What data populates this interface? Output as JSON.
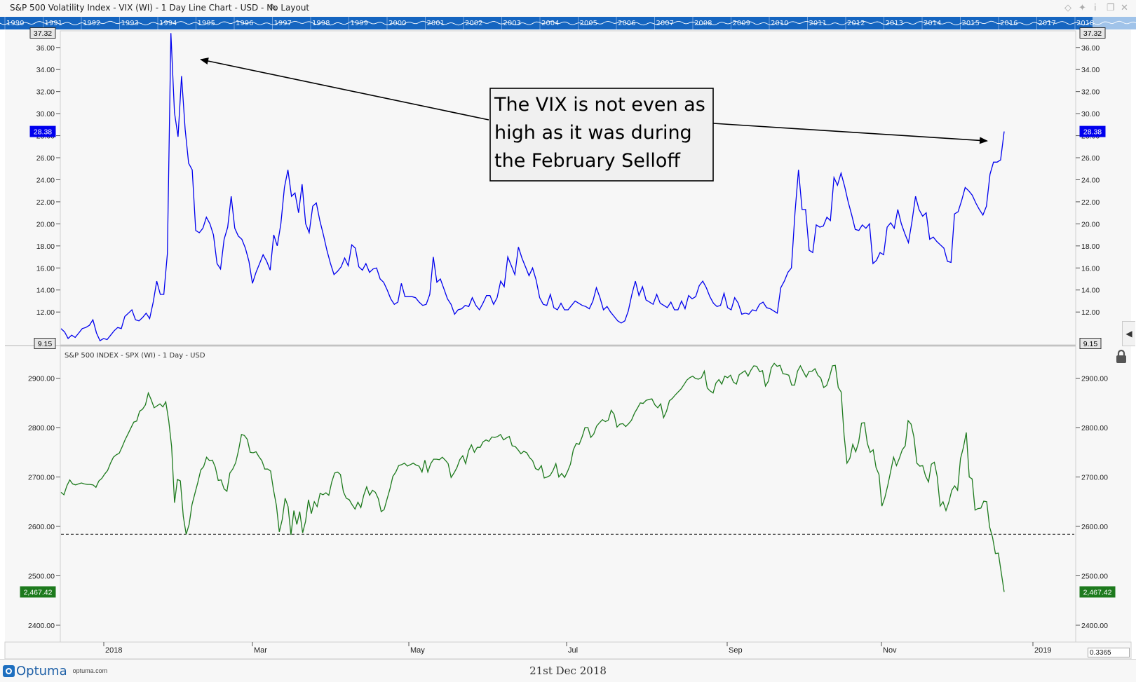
{
  "window": {
    "title": "S&P 500 Volatility Index - VIX (WI) - 1 Day Line Chart - USD - No Layout",
    "edit_icon": "pencil-icon",
    "controls": [
      "diamond-icon",
      "pin-icon",
      "info-icon",
      "restore-icon",
      "close-icon"
    ]
  },
  "overview": {
    "years": [
      "1990",
      "1991",
      "1992",
      "1993",
      "1994",
      "1995",
      "1996",
      "1997",
      "1998",
      "1999",
      "2000",
      "2001",
      "2002",
      "2003",
      "2004",
      "2005",
      "2006",
      "2007",
      "2008",
      "2009",
      "2010",
      "2011",
      "2012",
      "2013",
      "2014",
      "2015",
      "2016",
      "2017",
      "2018"
    ],
    "colors": {
      "band": "#1565c0",
      "selection": "#cfe3f7"
    }
  },
  "chart_data": [
    {
      "type": "line",
      "title": "S&P 500 Volatility Index - VIX (WI) - 1 Day Line Chart - USD",
      "color": "#0000ee",
      "ylim": [
        9.15,
        37.32
      ],
      "y_ticks": [
        "12.00",
        "14.00",
        "16.00",
        "18.00",
        "20.00",
        "22.00",
        "24.00",
        "26.00",
        "28.00",
        "30.00",
        "32.00",
        "34.00",
        "36.00"
      ],
      "top_box": "37.32",
      "bottom_box": "9.15",
      "last_value_label": "28.38",
      "series": [
        {
          "values": [
            10.5,
            10.2,
            9.6,
            9.9,
            9.7,
            10.1,
            10.5,
            10.6,
            10.8,
            11.3,
            10.1,
            9.4,
            9.6,
            9.5,
            9.9,
            10.3,
            10.6,
            10.5,
            11.6,
            11.9,
            12.2,
            11.3,
            11.2,
            11.5,
            11.9,
            11.4,
            12.9,
            14.8,
            13.6,
            13.6,
            17.3,
            37.3,
            30.1,
            27.9,
            33.4,
            28.6,
            25.5,
            24.9,
            19.4,
            19.2,
            19.6,
            20.6,
            20.0,
            19.0,
            16.4,
            15.9,
            18.6,
            19.7,
            22.5,
            19.6,
            18.9,
            18.6,
            17.8,
            16.6,
            14.6,
            15.6,
            16.4,
            17.2,
            16.6,
            15.8,
            19.0,
            18.0,
            20.0,
            23.3,
            24.9,
            22.5,
            22.8,
            21.0,
            23.6,
            20.0,
            19.2,
            21.6,
            21.9,
            20.3,
            19.0,
            17.6,
            16.4,
            15.4,
            15.7,
            16.1,
            16.9,
            16.2,
            18.1,
            17.8,
            16.1,
            15.8,
            16.4,
            15.6,
            15.9,
            16.0,
            15.0,
            14.7,
            14.0,
            13.2,
            12.7,
            12.9,
            14.6,
            13.4,
            13.4,
            13.4,
            13.3,
            12.9,
            12.6,
            12.7,
            13.6,
            17.0,
            14.7,
            15.0,
            14.1,
            13.2,
            12.7,
            11.8,
            12.2,
            12.3,
            12.6,
            12.5,
            13.3,
            12.6,
            12.2,
            12.8,
            13.5,
            13.5,
            12.7,
            13.3,
            14.8,
            14.3,
            17.0,
            16.2,
            15.4,
            17.9,
            16.9,
            16.1,
            15.3,
            16.0,
            14.9,
            13.3,
            12.7,
            12.6,
            13.6,
            12.4,
            12.2,
            12.8,
            12.2,
            12.2,
            12.6,
            13.0,
            12.8,
            12.6,
            12.5,
            12.3,
            13.0,
            14.2,
            13.3,
            12.2,
            12.5,
            12.0,
            11.6,
            11.2,
            11.0,
            11.2,
            12.1,
            13.6,
            14.8,
            13.5,
            14.3,
            13.1,
            12.9,
            12.7,
            13.6,
            12.8,
            12.6,
            12.4,
            12.9,
            12.2,
            12.2,
            13.0,
            12.3,
            13.5,
            13.2,
            13.4,
            14.4,
            14.8,
            14.2,
            13.4,
            12.8,
            12.5,
            12.6,
            13.7,
            12.4,
            12.2,
            13.3,
            12.8,
            11.8,
            11.9,
            11.8,
            12.2,
            12.1,
            12.7,
            12.9,
            12.4,
            12.3,
            12.1,
            11.9,
            14.2,
            14.8,
            15.6,
            16.0,
            21.0,
            24.9,
            21.3,
            21.3,
            17.6,
            17.4,
            19.9,
            19.7,
            19.8,
            20.6,
            20.3,
            24.2,
            23.5,
            24.6,
            23.4,
            22.0,
            20.8,
            19.5,
            19.4,
            19.9,
            19.6,
            20.0,
            16.4,
            16.7,
            17.4,
            17.2,
            19.7,
            20.1,
            19.6,
            21.3,
            20.0,
            19.1,
            18.3,
            20.2,
            22.5,
            21.3,
            20.7,
            21.0,
            18.6,
            18.8,
            18.4,
            18.1,
            17.8,
            16.6,
            16.5,
            20.9,
            21.1,
            22.1,
            23.3,
            23.0,
            22.6,
            21.9,
            21.3,
            20.8,
            21.6,
            24.5,
            25.6,
            25.6,
            25.8,
            28.38
          ]
        }
      ]
    },
    {
      "type": "line",
      "title": "S&P 500 INDEX - SPX (WI) - 1 Day - USD",
      "color": "#1d7a1d",
      "ylim": [
        2395,
        2995
      ],
      "y_ticks": [
        "2400.00",
        "2500.00",
        "2600.00",
        "2700.00",
        "2800.00",
        "2900.00"
      ],
      "last_value_label": "2,467.42",
      "support_level": 2584,
      "series": [
        {
          "values": [
            2669,
            2664,
            2682,
            2694,
            2686,
            2684,
            2686,
            2688,
            2686,
            2685,
            2685,
            2684,
            2679,
            2692,
            2697,
            2706,
            2713,
            2728,
            2740,
            2745,
            2748,
            2761,
            2775,
            2787,
            2799,
            2811,
            2813,
            2833,
            2837,
            2846,
            2870,
            2856,
            2840,
            2844,
            2848,
            2842,
            2852,
            2814,
            2762,
            2648,
            2695,
            2692,
            2620,
            2584,
            2604,
            2644,
            2667,
            2689,
            2714,
            2721,
            2740,
            2733,
            2734,
            2720,
            2693,
            2694,
            2676,
            2671,
            2708,
            2716,
            2729,
            2754,
            2786,
            2784,
            2776,
            2750,
            2749,
            2751,
            2741,
            2733,
            2716,
            2716,
            2712,
            2674,
            2642,
            2589,
            2614,
            2657,
            2640,
            2583,
            2632,
            2604,
            2630,
            2587,
            2610,
            2654,
            2626,
            2650,
            2640,
            2667,
            2664,
            2668,
            2663,
            2690,
            2708,
            2710,
            2705,
            2670,
            2657,
            2654,
            2644,
            2635,
            2649,
            2638,
            2663,
            2680,
            2663,
            2673,
            2669,
            2656,
            2630,
            2634,
            2655,
            2676,
            2701,
            2710,
            2723,
            2725,
            2728,
            2722,
            2725,
            2728,
            2724,
            2722,
            2710,
            2734,
            2710,
            2727,
            2736,
            2736,
            2735,
            2740,
            2734,
            2727,
            2699,
            2708,
            2719,
            2735,
            2743,
            2727,
            2753,
            2765,
            2750,
            2760,
            2760,
            2771,
            2775,
            2772,
            2781,
            2780,
            2782,
            2786,
            2775,
            2779,
            2782,
            2763,
            2762,
            2755,
            2747,
            2752,
            2749,
            2739,
            2733,
            2717,
            2714,
            2723,
            2698,
            2700,
            2703,
            2713,
            2727,
            2700,
            2707,
            2699,
            2711,
            2726,
            2755,
            2768,
            2766,
            2781,
            2800,
            2800,
            2780,
            2787,
            2803,
            2810,
            2816,
            2812,
            2815,
            2835,
            2827,
            2801,
            2807,
            2808,
            2802,
            2808,
            2815,
            2829,
            2839,
            2850,
            2849,
            2855,
            2857,
            2858,
            2846,
            2840,
            2848,
            2820,
            2833,
            2854,
            2859,
            2866,
            2872,
            2878,
            2887,
            2896,
            2901,
            2904,
            2899,
            2898,
            2901,
            2914,
            2880,
            2874,
            2870,
            2890,
            2897,
            2888,
            2904,
            2901,
            2906,
            2892,
            2888,
            2907,
            2911,
            2915,
            2904,
            2916,
            2925,
            2924,
            2913,
            2915,
            2884,
            2894,
            2921,
            2930,
            2924,
            2926,
            2909,
            2908,
            2906,
            2886,
            2886,
            2914,
            2925,
            2913,
            2902,
            2914,
            2914,
            2919,
            2906,
            2900,
            2881,
            2885,
            2902,
            2925,
            2926,
            2881,
            2872,
            2785,
            2728,
            2738,
            2766,
            2751,
            2770,
            2809,
            2810,
            2768,
            2750,
            2755,
            2719,
            2705,
            2641,
            2658,
            2683,
            2711,
            2740,
            2723,
            2738,
            2755,
            2763,
            2814,
            2807,
            2781,
            2728,
            2722,
            2723,
            2702,
            2690,
            2726,
            2730,
            2701,
            2641,
            2650,
            2632,
            2649,
            2673,
            2682,
            2673,
            2737,
            2760,
            2790,
            2700,
            2696,
            2633,
            2636,
            2637,
            2651,
            2650,
            2599,
            2578,
            2545,
            2546,
            2507,
            2467.42
          ]
        }
      ]
    }
  ],
  "x_axis": {
    "labels": [
      "2018",
      "Mar",
      "May",
      "Jul",
      "Sep",
      "Nov",
      "2019"
    ]
  },
  "annotation": {
    "lines": [
      "The VIX is not even as",
      "high as it was during",
      "the February Selloff"
    ]
  },
  "footer": {
    "logo_text": "Optuma",
    "logo_url": "optuma.com",
    "date": "21st Dec 2018",
    "zoom_value": "0.3365"
  },
  "side_controls": {
    "collapse_icon": "chevron-left-icon",
    "lock_icon": "lock-icon"
  }
}
